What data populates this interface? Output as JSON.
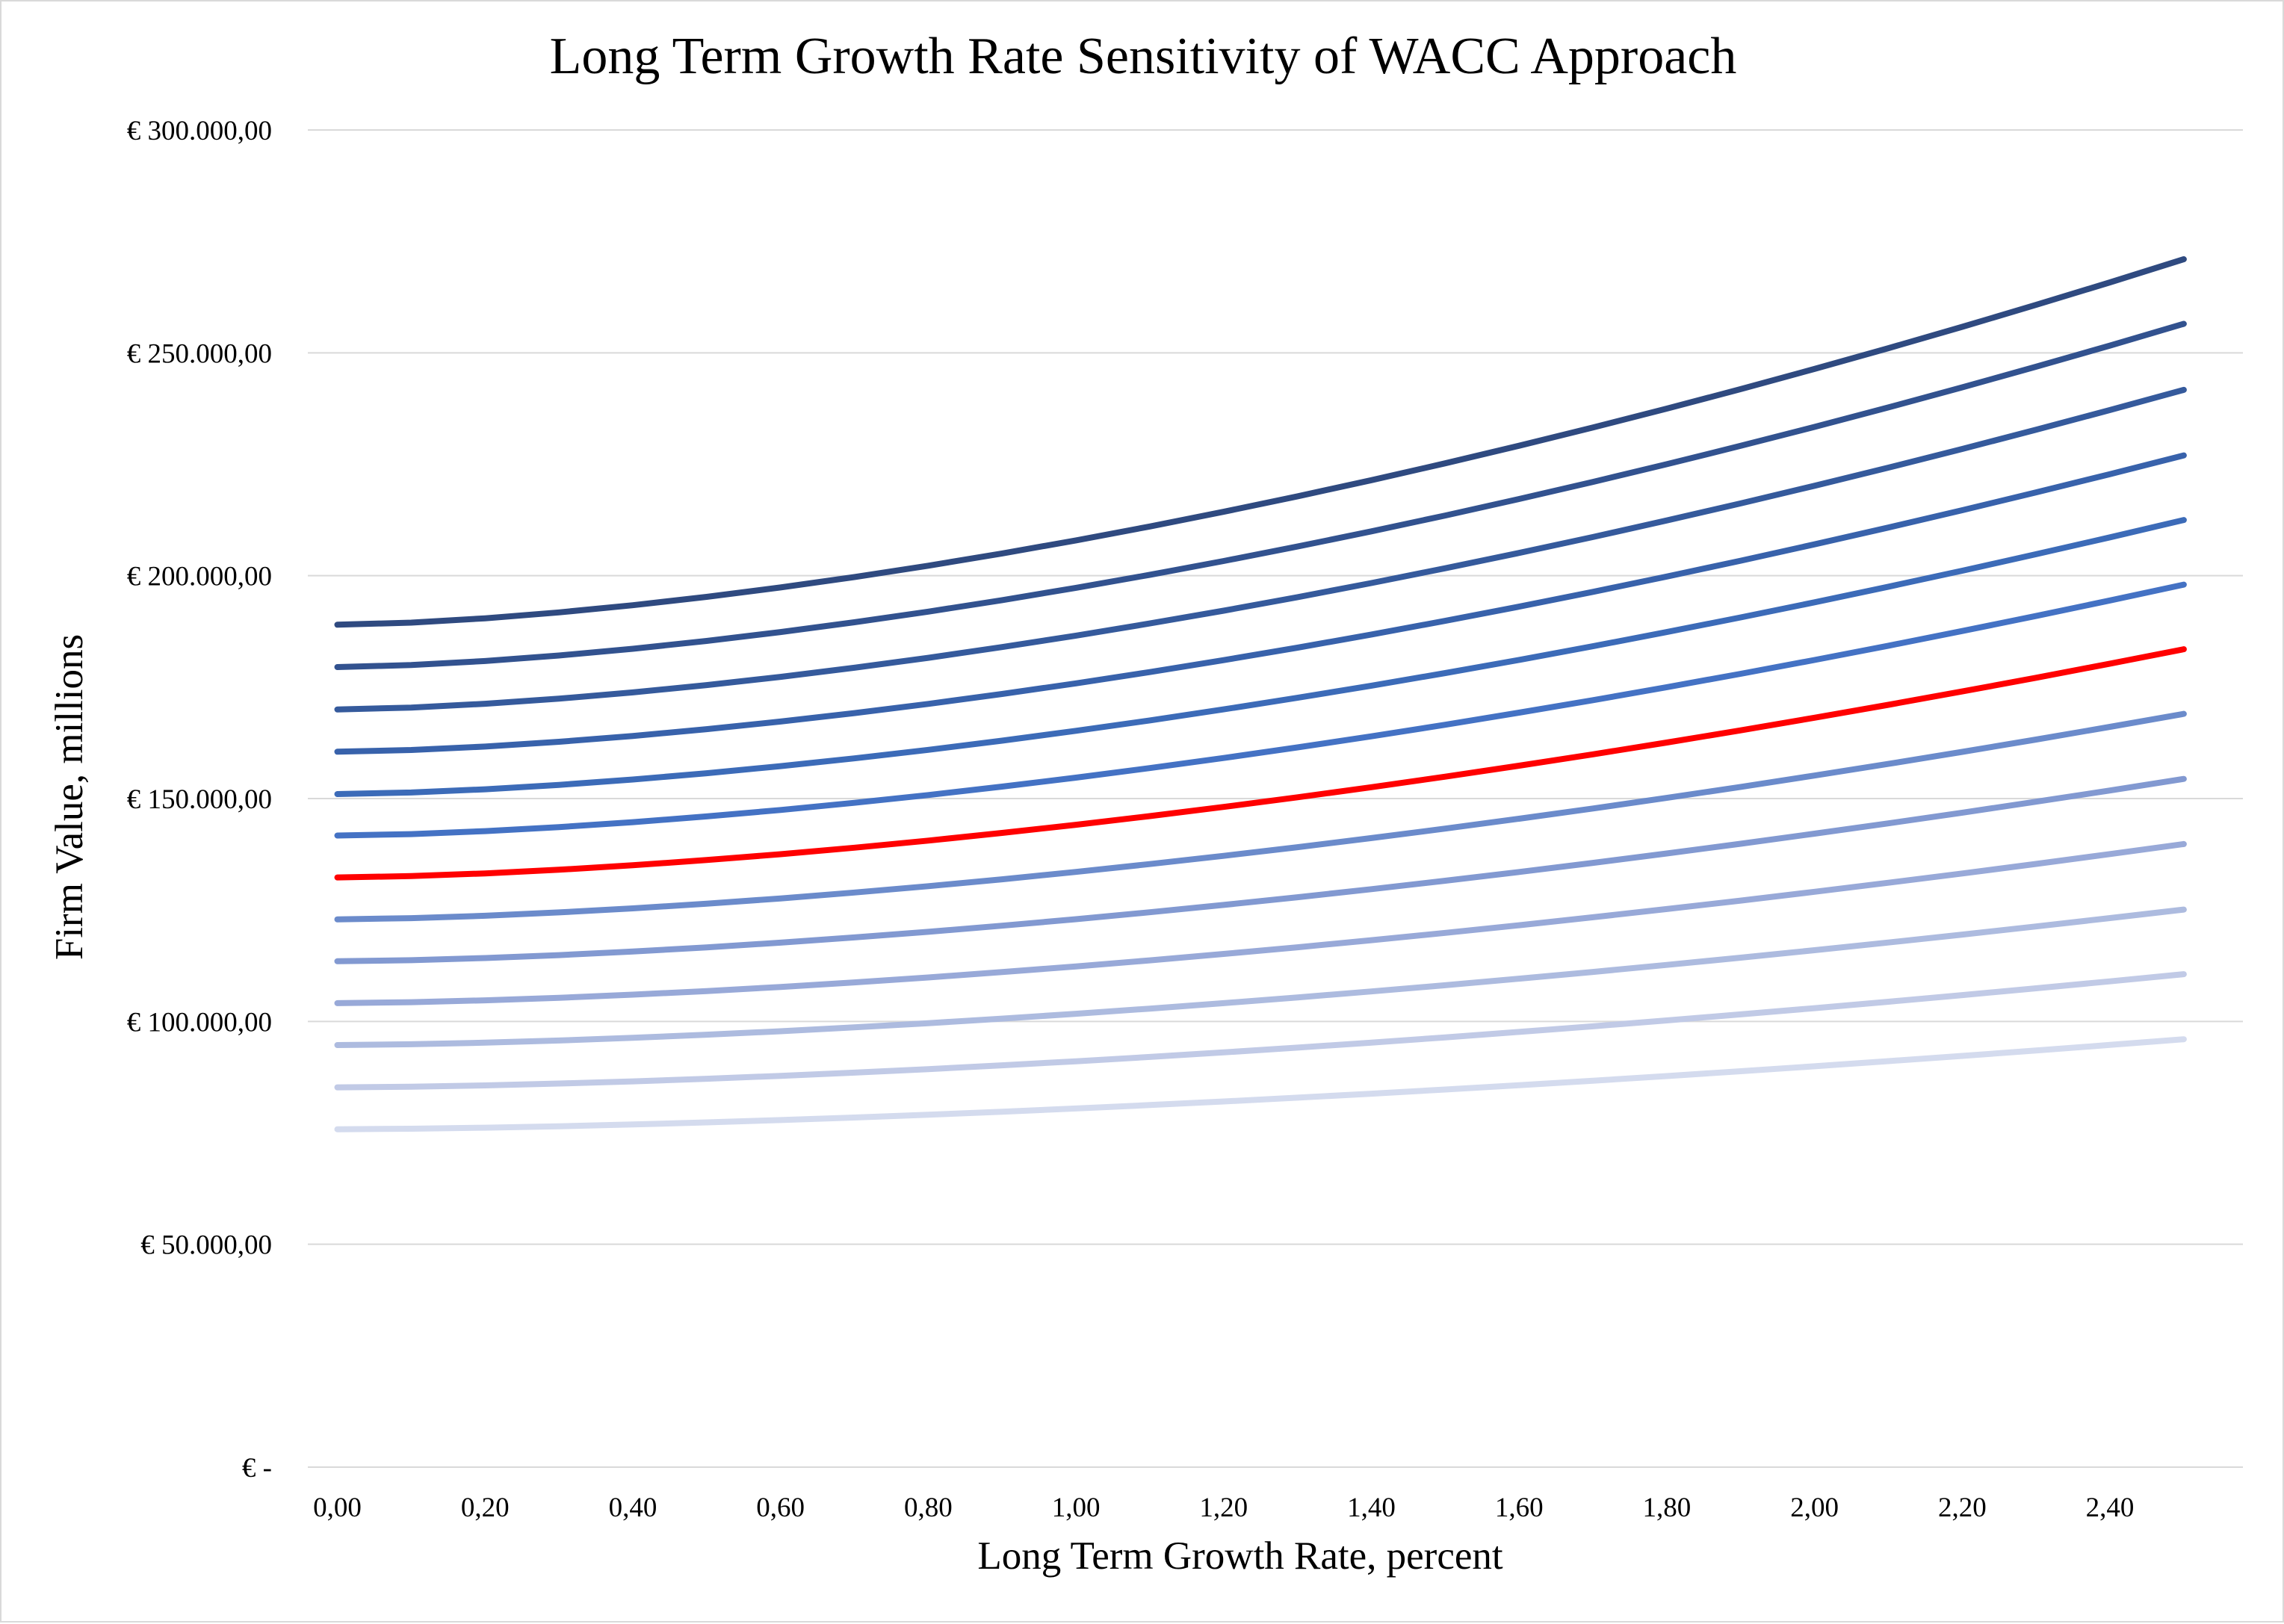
{
  "chart_data": {
    "type": "line",
    "title": "Long Term Growth Rate Sensitivity of WACC Approach",
    "xlabel": "Long Term Growth Rate, percent",
    "ylabel": "Firm Value, millions",
    "x": [
      0.0,
      0.1,
      0.2,
      0.3,
      0.4,
      0.5,
      0.6,
      0.7,
      0.8,
      0.9,
      1.0,
      1.1,
      1.2,
      1.3,
      1.4,
      1.5,
      1.6,
      1.7,
      1.8,
      1.9,
      2.0,
      2.1,
      2.2,
      2.3,
      2.4,
      2.5
    ],
    "x_ticks": [
      0.0,
      0.2,
      0.4,
      0.6,
      0.8,
      1.0,
      1.2,
      1.4,
      1.6,
      1.8,
      2.0,
      2.2,
      2.4
    ],
    "x_tick_labels": [
      "0,00",
      "0,20",
      "0,40",
      "0,60",
      "0,80",
      "1,00",
      "1,20",
      "1,40",
      "1,60",
      "1,80",
      "2,00",
      "2,20",
      "2,40"
    ],
    "xlim": [
      -0.04,
      2.58
    ],
    "ylim": [
      0,
      300000
    ],
    "y_ticks": [
      0,
      50000,
      100000,
      150000,
      200000,
      250000,
      300000
    ],
    "y_tick_labels": [
      "€ -",
      "€ 50.000,00",
      "€ 100.000,00",
      "€ 150.000,00",
      "€ 200.000,00",
      "€ 250.000,00",
      "€ 300.000,00"
    ],
    "grid": "horizontal",
    "gridline_color": "#d9d9d9",
    "highlight_color": "#ff0000",
    "series_colors": [
      "#2f4a80",
      "#32528f",
      "#355a9c",
      "#3862ab",
      "#3c6bb8",
      "#4472c4",
      "#ff0000",
      "#6b8bcb",
      "#8299d1",
      "#98a9d8",
      "#adbbdf",
      "#c1cae6",
      "#d4dbee"
    ],
    "series_start_values": [
      189000,
      179500,
      170000,
      160500,
      151000,
      141700,
      132300,
      122900,
      113500,
      104100,
      94700,
      85200,
      75800
    ],
    "series_end_values": [
      271000,
      256500,
      241700,
      227000,
      212500,
      198000,
      183500,
      169000,
      154400,
      139800,
      125100,
      110600,
      96000
    ]
  }
}
